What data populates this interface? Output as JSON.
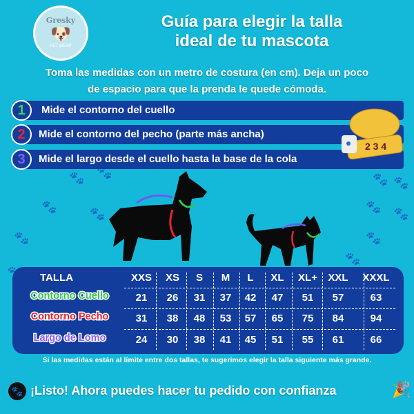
{
  "logo": {
    "text": "Gresky",
    "subtext": "PET WEAR"
  },
  "title": [
    "Guía para elegir la talla",
    "ideal de tu mascota"
  ],
  "subtitle": [
    "Toma las medidas con un metro de costura (en cm). Deja un poco",
    "de espacio para que la prenda le quede cómoda."
  ],
  "steps": [
    {
      "num": "1",
      "label": "Mide el contorno del cuello",
      "color": "#3ecf5a"
    },
    {
      "num": "2",
      "label": "Mide el contorno del pecho (parte más ancha)",
      "color": "#e8223a"
    },
    {
      "num": "3",
      "label": "Mide el largo desde el cuello hasta la base de la cola",
      "color": "#8b5cf6"
    }
  ],
  "tape": {
    "numbers": "2 3 4"
  },
  "table": {
    "header": "TALLA",
    "sizes": [
      "XXS",
      "XS",
      "S",
      "M",
      "L",
      "XL",
      "XL+",
      "XXL",
      "XXXL"
    ],
    "rows": [
      {
        "label": "Contorno Cuello",
        "color": "#2ec94f",
        "values": [
          "21",
          "26",
          "31",
          "37",
          "42",
          "47",
          "51",
          "57",
          "63"
        ]
      },
      {
        "label": "Contorno Pecho",
        "color": "#e8223a",
        "values": [
          "31",
          "38",
          "48",
          "53",
          "57",
          "65",
          "75",
          "84",
          "94"
        ]
      },
      {
        "label": "Largo de Lomo",
        "color": "#8b5cf6",
        "values": [
          "24",
          "30",
          "38",
          "41",
          "45",
          "51",
          "55",
          "61",
          "66"
        ]
      }
    ]
  },
  "note": "Si las medidas están al límite entre dos tallas, te sugerimos elegir la talla siguiente más grande.",
  "closing": "¡Listo! Ahora puedes hacer tu pedido con confianza"
}
